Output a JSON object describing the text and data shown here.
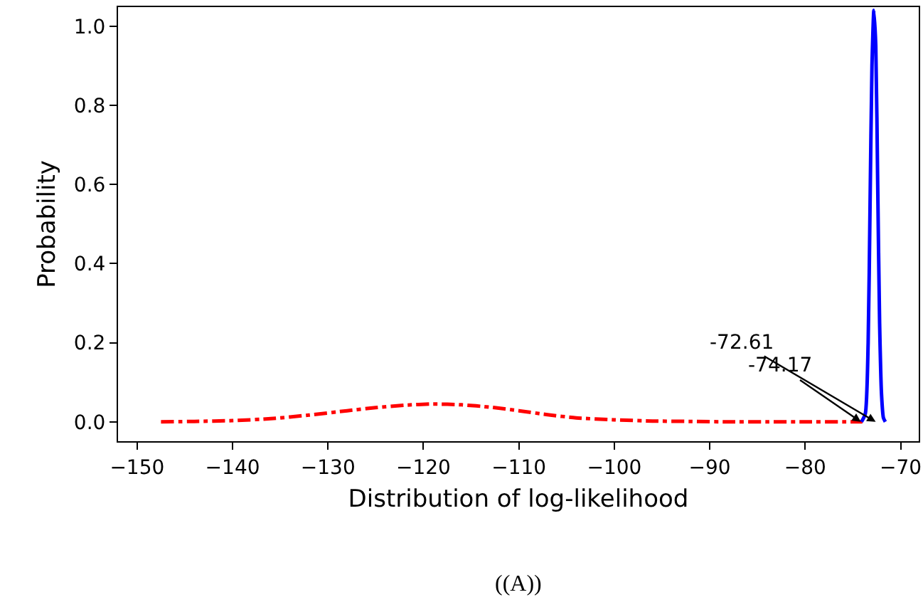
{
  "chart_data": {
    "type": "line",
    "xlabel": "Distribution of log-likelihood",
    "ylabel": "Probability",
    "xlim": [
      -152,
      -68.1
    ],
    "ylim": [
      -0.049,
      1.048
    ],
    "xticks": [
      {
        "value": -150,
        "label": "−150"
      },
      {
        "value": -140,
        "label": "−140"
      },
      {
        "value": -130,
        "label": "−130"
      },
      {
        "value": -120,
        "label": "−120"
      },
      {
        "value": -110,
        "label": "−110"
      },
      {
        "value": -100,
        "label": "−100"
      },
      {
        "value": -90,
        "label": "−90"
      },
      {
        "value": -80,
        "label": "−80"
      },
      {
        "value": -70,
        "label": "−70"
      }
    ],
    "yticks": [
      {
        "value": 0,
        "label": "0.0"
      },
      {
        "value": 0.2,
        "label": "0.2"
      },
      {
        "value": 0.4,
        "label": "0.4"
      },
      {
        "value": 0.6,
        "label": "0.6"
      },
      {
        "value": 0.8,
        "label": "0.8"
      },
      {
        "value": 1.0,
        "label": "1.0"
      }
    ],
    "grid": false,
    "marker": "none",
    "series": [
      {
        "color": "#ff0000",
        "line_style": "dashdot",
        "x": [
          -147.5,
          -144,
          -140,
          -136,
          -132,
          -128,
          -125,
          -122,
          -119,
          -116,
          -113,
          -110,
          -107,
          -104,
          -100,
          -96,
          -92,
          -88,
          -84,
          -80,
          -76,
          -74
        ],
        "values": [
          0.0,
          0.001,
          0.003,
          0.008,
          0.017,
          0.028,
          0.036,
          0.042,
          0.045,
          0.043,
          0.037,
          0.028,
          0.018,
          0.01,
          0.005,
          0.002,
          0.001,
          0.0,
          0.0,
          0.0,
          0.0,
          0.0
        ]
      },
      {
        "color": "#0000ff",
        "line_style": "solid",
        "x": [
          -74.1,
          -73.7,
          -73.4,
          -73.2,
          -73.0,
          -72.8,
          -72.6,
          -72.4,
          -72.2,
          -72.0,
          -71.8,
          -71.6
        ],
        "values": [
          0.0,
          0.02,
          0.2,
          0.55,
          0.9,
          1.04,
          0.95,
          0.6,
          0.25,
          0.07,
          0.01,
          0.0
        ]
      }
    ],
    "annotations": [
      {
        "text": "-72.61",
        "x": -72.61,
        "y": 0.0
      },
      {
        "text": "-74.17",
        "x": -74.17,
        "y": 0.0
      },
      "((A))"
    ]
  }
}
